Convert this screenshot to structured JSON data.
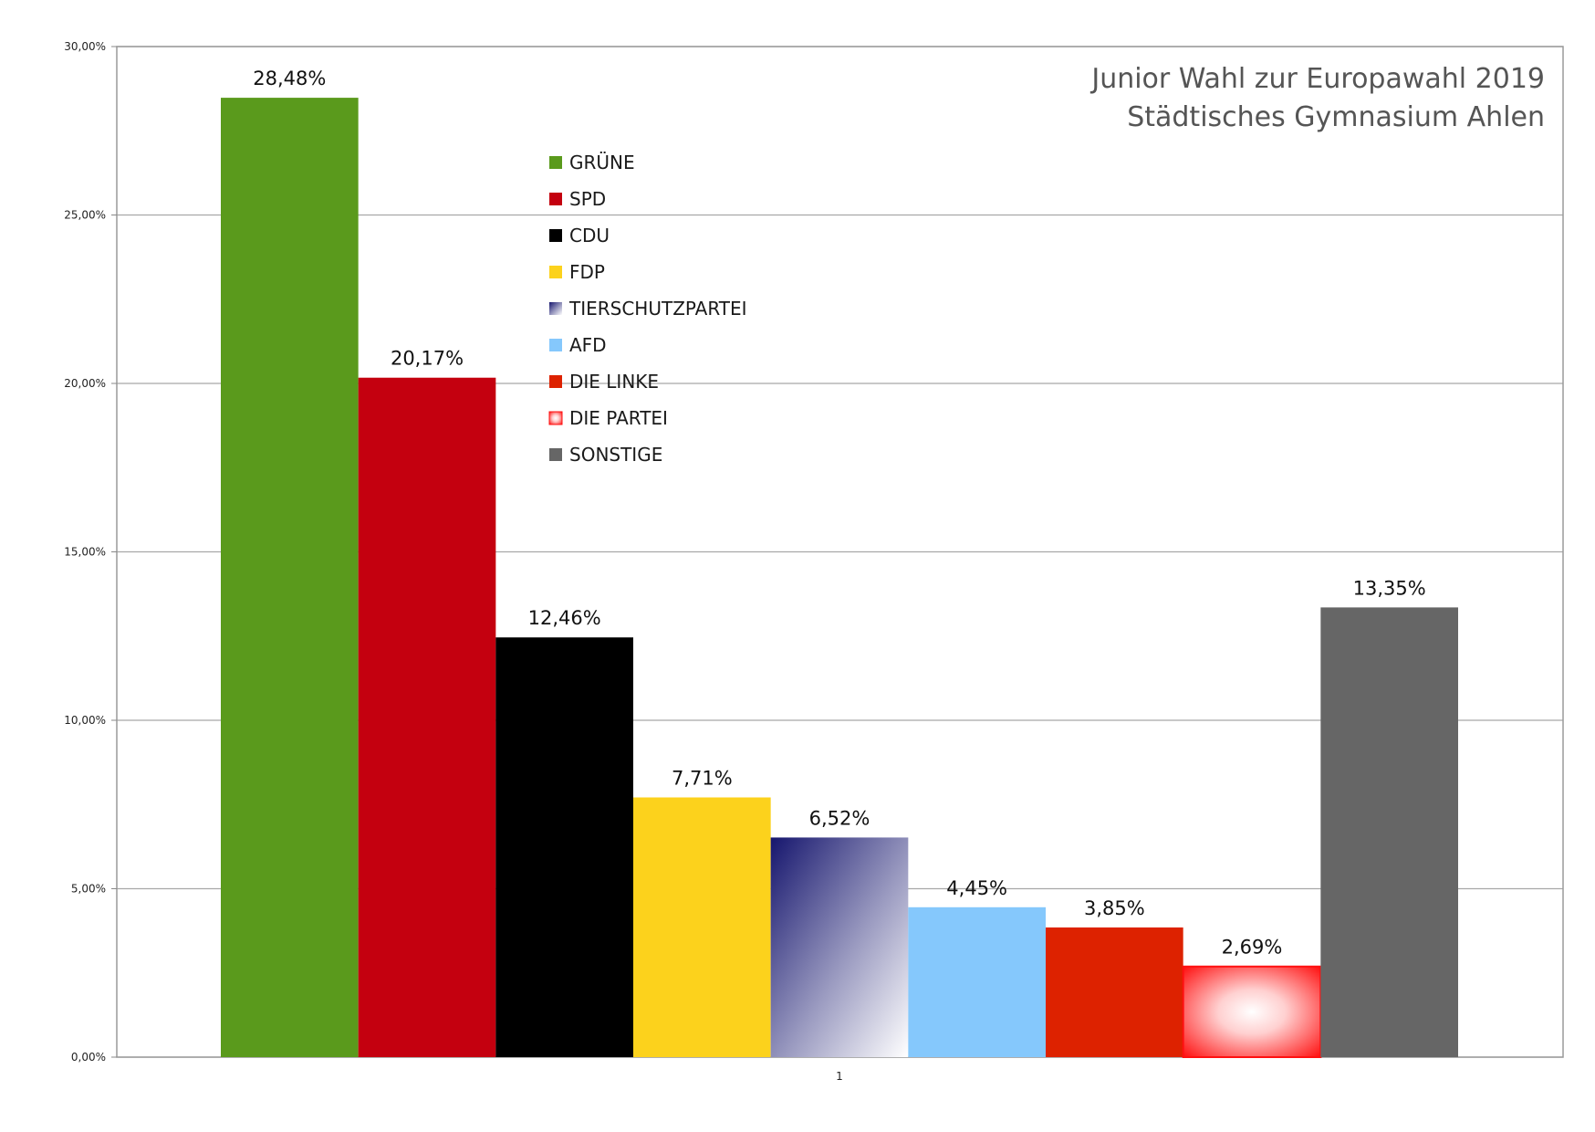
{
  "chart_data": {
    "type": "bar",
    "title": "Junior Wahl zur Europawahl 2019",
    "subtitle": "Städtisches Gymnasium Ahlen",
    "categories": [
      "1"
    ],
    "series": [
      {
        "name": "GRÜNE",
        "values": [
          28.48
        ],
        "label": "28,48%",
        "color": "#5a9a1c",
        "style": "solid"
      },
      {
        "name": "SPD",
        "values": [
          20.17
        ],
        "label": "20,17%",
        "color": "#c4000f",
        "style": "solid"
      },
      {
        "name": "CDU",
        "values": [
          12.46
        ],
        "label": "12,46%",
        "color": "#000000",
        "style": "solid"
      },
      {
        "name": "FDP",
        "values": [
          7.71
        ],
        "label": "7,71%",
        "color": "#fcd21c",
        "style": "solid"
      },
      {
        "name": "TIERSCHUTZPARTEI",
        "values": [
          6.52
        ],
        "label": "6,52%",
        "color": "#1a1a7a",
        "style": "diagonal-gradient"
      },
      {
        "name": "AFD",
        "values": [
          4.45
        ],
        "label": "4,45%",
        "color": "#85c8fc",
        "style": "solid"
      },
      {
        "name": "DIE LINKE",
        "values": [
          3.85
        ],
        "label": "3,85%",
        "color": "#dd2200",
        "style": "solid"
      },
      {
        "name": "DIE PARTEI",
        "values": [
          2.69
        ],
        "label": "2,69%",
        "color": "#ff1a1a",
        "style": "radial-gradient"
      },
      {
        "name": "SONSTIGE",
        "values": [
          13.35
        ],
        "label": "13,35%",
        "color": "#666666",
        "style": "solid"
      }
    ],
    "y_ticks": [
      "0,00%",
      "5,00%",
      "10,00%",
      "15,00%",
      "20,00%",
      "25,00%",
      "30,00%"
    ],
    "ylim": [
      0,
      30
    ],
    "ytick_step": 5,
    "grid": true,
    "legend_position": "top-left-inside"
  }
}
